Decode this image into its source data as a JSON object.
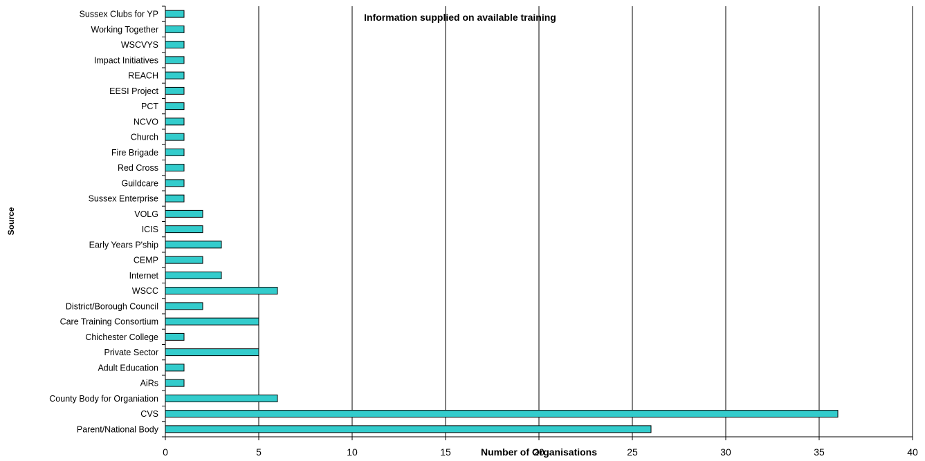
{
  "chart_data": {
    "type": "bar",
    "orientation": "horizontal",
    "title": "Information supplied on available training",
    "xlabel": "Number of Organisations",
    "ylabel": "Source",
    "xlim": [
      0,
      40
    ],
    "xticks": [
      0,
      5,
      10,
      15,
      20,
      25,
      30,
      35,
      40
    ],
    "grid": "vertical",
    "bar_color": "#33CCCC",
    "categories": [
      "Parent/National Body",
      "CVS",
      "County Body for Organiation",
      "AiRs",
      "Adult Education",
      "Private Sector",
      "Chichester College",
      "Care Training Consortium",
      "District/Borough Council",
      "WSCC",
      "Internet",
      "CEMP",
      "Early Years P'ship",
      "ICIS",
      "VOLG",
      "Sussex Enterprise",
      "Guildcare",
      "Red Cross",
      "Fire Brigade",
      "Church",
      "NCVO",
      "PCT",
      "EESI Project",
      "REACH",
      "Impact Initiatives",
      "WSCVYS",
      "Working Together",
      "Sussex Clubs for YP"
    ],
    "values": [
      26,
      36,
      6,
      1,
      1,
      5,
      1,
      5,
      2,
      6,
      3,
      2,
      3,
      2,
      2,
      1,
      1,
      1,
      1,
      1,
      1,
      1,
      1,
      1,
      1,
      1,
      1,
      1
    ]
  }
}
